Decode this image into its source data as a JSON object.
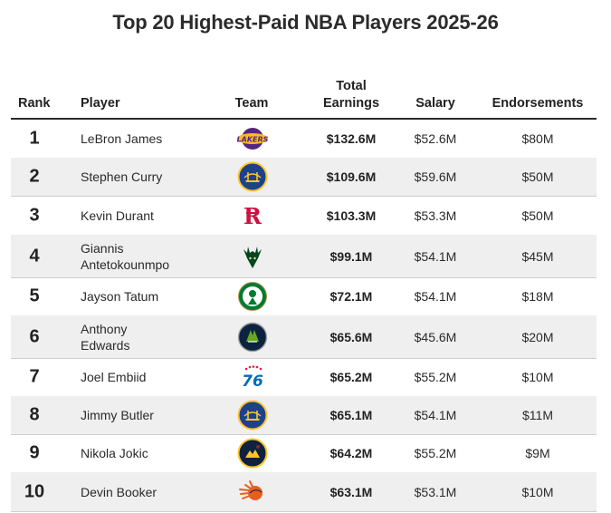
{
  "title": "Top 20 Highest-Paid NBA Players 2025-26",
  "headers": {
    "rank": "Rank",
    "player": "Player",
    "team": "Team",
    "total_line1": "Total",
    "total_line2": "Earnings",
    "salary": "Salary",
    "endorsements": "Endorsements"
  },
  "colors": {
    "row_shade": "#efefef",
    "header_rule": "#2b2b2b",
    "row_rule": "#cfcfcf"
  },
  "rows": [
    {
      "rank": "1",
      "player_line1": "LeBron James",
      "player_line2": "",
      "team_icon": "lakers-logo",
      "total": "$132.6M",
      "salary": "$52.6M",
      "endorsements": "$80M"
    },
    {
      "rank": "2",
      "player_line1": "Stephen Curry",
      "player_line2": "",
      "team_icon": "warriors-logo",
      "total": "$109.6M",
      "salary": "$59.6M",
      "endorsements": "$50M"
    },
    {
      "rank": "3",
      "player_line1": "Kevin Durant",
      "player_line2": "",
      "team_icon": "rockets-logo",
      "total": "$103.3M",
      "salary": "$53.3M",
      "endorsements": "$50M"
    },
    {
      "rank": "4",
      "player_line1": "Giannis",
      "player_line2": "Antetokounmpo",
      "team_icon": "bucks-logo",
      "total": "$99.1M",
      "salary": "$54.1M",
      "endorsements": "$45M"
    },
    {
      "rank": "5",
      "player_line1": "Jayson Tatum",
      "player_line2": "",
      "team_icon": "celtics-logo",
      "total": "$72.1M",
      "salary": "$54.1M",
      "endorsements": "$18M"
    },
    {
      "rank": "6",
      "player_line1": "Anthony",
      "player_line2": "Edwards",
      "team_icon": "timberwolves-logo",
      "total": "$65.6M",
      "salary": "$45.6M",
      "endorsements": "$20M"
    },
    {
      "rank": "7",
      "player_line1": "Joel Embiid",
      "player_line2": "",
      "team_icon": "76ers-logo",
      "total": "$65.2M",
      "salary": "$55.2M",
      "endorsements": "$10M"
    },
    {
      "rank": "8",
      "player_line1": "Jimmy Butler",
      "player_line2": "",
      "team_icon": "warriors-logo",
      "total": "$65.1M",
      "salary": "$54.1M",
      "endorsements": "$11M"
    },
    {
      "rank": "9",
      "player_line1": "Nikola Jokic",
      "player_line2": "",
      "team_icon": "nuggets-logo",
      "total": "$64.2M",
      "salary": "$55.2M",
      "endorsements": "$9M"
    },
    {
      "rank": "10",
      "player_line1": "Devin Booker",
      "player_line2": "",
      "team_icon": "suns-logo",
      "total": "$63.1M",
      "salary": "$53.1M",
      "endorsements": "$10M"
    }
  ]
}
